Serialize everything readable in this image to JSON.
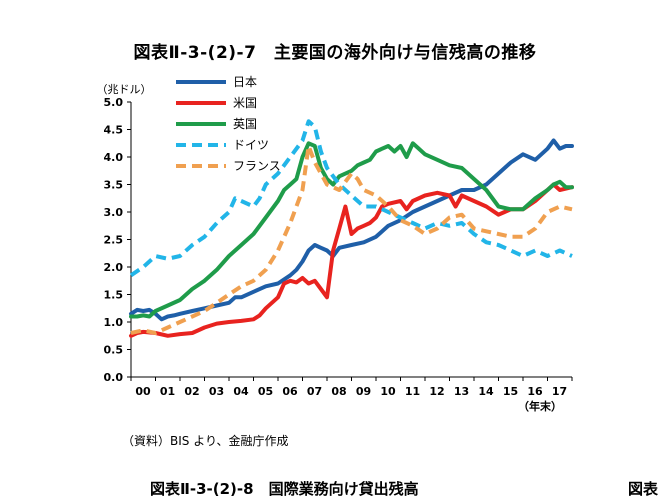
{
  "page": {
    "title": "図表Ⅱ-3-(2)-7　主要国の海外向け与信残高の推移",
    "source": "（資料）BIS より、金融庁作成",
    "next_caption": "図表Ⅱ-3-(2)-8　国際業務向け貸出残高",
    "next_caption_right": "図表"
  },
  "chart_data": {
    "type": "line",
    "title": "図表Ⅱ-3-(2)-7　主要国の海外向け与信残高の推移",
    "ylabel": "（兆ドル）",
    "xlabel": "（年末）",
    "ylim": [
      0,
      5
    ],
    "xlim": [
      2000,
      2018
    ],
    "grid": false,
    "legend_position": "top-left",
    "y_ticks": [
      "0.0",
      "0.5",
      "1.0",
      "1.5",
      "2.0",
      "2.5",
      "3.0",
      "3.5",
      "4.0",
      "4.5",
      "5.0"
    ],
    "x_ticks": [
      "00",
      "01",
      "02",
      "03",
      "04",
      "05",
      "06",
      "07",
      "08",
      "09",
      "10",
      "11",
      "12",
      "13",
      "14",
      "15",
      "16",
      "17"
    ],
    "series": [
      {
        "name": "日本",
        "color": "#1f5fa8",
        "dash": "solid",
        "x": [
          2000.0,
          2000.25,
          2000.5,
          2000.75,
          2001.0,
          2001.25,
          2001.5,
          2001.75,
          2002.0,
          2002.5,
          2003.0,
          2003.5,
          2004.0,
          2004.25,
          2004.5,
          2005.0,
          2005.5,
          2006.0,
          2006.5,
          2006.75,
          2007.0,
          2007.25,
          2007.5,
          2007.75,
          2008.0,
          2008.25,
          2008.5,
          2009.0,
          2009.5,
          2010.0,
          2010.5,
          2011.0,
          2011.5,
          2012.0,
          2012.5,
          2013.0,
          2013.5,
          2014.0,
          2014.5,
          2015.0,
          2015.5,
          2016.0,
          2016.5,
          2017.0,
          2017.25,
          2017.5,
          2017.75,
          2018.0
        ],
        "y": [
          1.15,
          1.22,
          1.2,
          1.22,
          1.15,
          1.05,
          1.1,
          1.12,
          1.15,
          1.2,
          1.25,
          1.3,
          1.35,
          1.45,
          1.45,
          1.55,
          1.65,
          1.7,
          1.85,
          1.95,
          2.1,
          2.3,
          2.4,
          2.35,
          2.3,
          2.2,
          2.35,
          2.4,
          2.45,
          2.55,
          2.75,
          2.85,
          3.0,
          3.1,
          3.2,
          3.3,
          3.4,
          3.4,
          3.5,
          3.7,
          3.9,
          4.05,
          3.95,
          4.15,
          4.3,
          4.15,
          4.2,
          4.2
        ]
      },
      {
        "name": "米国",
        "color": "#e8231f",
        "dash": "solid",
        "x": [
          2000.0,
          2000.25,
          2000.5,
          2001.0,
          2001.5,
          2002.0,
          2002.5,
          2003.0,
          2003.5,
          2004.0,
          2004.5,
          2005.0,
          2005.25,
          2005.5,
          2006.0,
          2006.25,
          2006.5,
          2006.75,
          2007.0,
          2007.25,
          2007.5,
          2007.75,
          2008.0,
          2008.25,
          2008.5,
          2008.75,
          2009.0,
          2009.25,
          2009.5,
          2009.75,
          2010.0,
          2010.25,
          2010.5,
          2011.0,
          2011.25,
          2011.5,
          2012.0,
          2012.5,
          2013.0,
          2013.25,
          2013.5,
          2014.0,
          2014.5,
          2015.0,
          2015.25,
          2015.5,
          2016.0,
          2016.5,
          2017.0,
          2017.25,
          2017.5,
          2018.0
        ],
        "y": [
          0.75,
          0.8,
          0.82,
          0.8,
          0.75,
          0.78,
          0.8,
          0.9,
          0.97,
          1.0,
          1.02,
          1.05,
          1.12,
          1.25,
          1.45,
          1.7,
          1.75,
          1.72,
          1.8,
          1.7,
          1.75,
          1.6,
          1.45,
          2.3,
          2.7,
          3.1,
          2.6,
          2.7,
          2.75,
          2.8,
          2.9,
          3.1,
          3.15,
          3.2,
          3.05,
          3.2,
          3.3,
          3.35,
          3.3,
          3.1,
          3.3,
          3.2,
          3.1,
          2.95,
          3.0,
          3.05,
          3.05,
          3.2,
          3.4,
          3.5,
          3.4,
          3.45
        ]
      },
      {
        "name": "英国",
        "color": "#1f9c4a",
        "dash": "solid",
        "x": [
          2000.0,
          2000.25,
          2000.5,
          2000.75,
          2001.0,
          2001.5,
          2002.0,
          2002.5,
          2003.0,
          2003.5,
          2004.0,
          2004.5,
          2005.0,
          2005.5,
          2006.0,
          2006.25,
          2006.5,
          2006.75,
          2007.0,
          2007.25,
          2007.5,
          2007.75,
          2008.0,
          2008.25,
          2008.5,
          2009.0,
          2009.25,
          2009.5,
          2009.75,
          2010.0,
          2010.25,
          2010.5,
          2010.75,
          2011.0,
          2011.25,
          2011.5,
          2011.75,
          2012.0,
          2012.5,
          2013.0,
          2013.5,
          2014.0,
          2014.5,
          2015.0,
          2015.5,
          2016.0,
          2016.5,
          2017.0,
          2017.25,
          2017.5,
          2017.75,
          2018.0
        ],
        "y": [
          1.1,
          1.1,
          1.12,
          1.1,
          1.2,
          1.3,
          1.4,
          1.6,
          1.75,
          1.95,
          2.2,
          2.4,
          2.6,
          2.9,
          3.2,
          3.4,
          3.5,
          3.6,
          4.0,
          4.25,
          4.2,
          3.8,
          3.6,
          3.5,
          3.65,
          3.75,
          3.85,
          3.9,
          3.95,
          4.1,
          4.15,
          4.2,
          4.1,
          4.2,
          4.0,
          4.25,
          4.15,
          4.05,
          3.95,
          3.85,
          3.8,
          3.6,
          3.4,
          3.1,
          3.05,
          3.05,
          3.25,
          3.4,
          3.5,
          3.55,
          3.45,
          3.45
        ]
      },
      {
        "name": "ドイツ",
        "color": "#22b5e8",
        "dash": "dashed",
        "x": [
          2000.0,
          2000.5,
          2001.0,
          2001.5,
          2002.0,
          2002.5,
          2003.0,
          2003.5,
          2004.0,
          2004.25,
          2004.5,
          2005.0,
          2005.25,
          2005.5,
          2006.0,
          2006.5,
          2007.0,
          2007.25,
          2007.5,
          2007.75,
          2008.0,
          2008.5,
          2009.0,
          2009.5,
          2010.0,
          2010.5,
          2011.0,
          2011.5,
          2012.0,
          2012.5,
          2013.0,
          2013.5,
          2014.0,
          2014.5,
          2015.0,
          2015.5,
          2016.0,
          2016.5,
          2017.0,
          2017.5,
          2018.0
        ],
        "y": [
          1.85,
          2.0,
          2.2,
          2.15,
          2.2,
          2.4,
          2.55,
          2.8,
          3.0,
          3.25,
          3.2,
          3.1,
          3.25,
          3.5,
          3.7,
          4.0,
          4.3,
          4.65,
          4.55,
          4.1,
          3.8,
          3.5,
          3.3,
          3.1,
          3.1,
          3.0,
          2.9,
          2.8,
          2.7,
          2.8,
          2.75,
          2.8,
          2.6,
          2.45,
          2.4,
          2.3,
          2.2,
          2.3,
          2.2,
          2.3,
          2.2
        ]
      },
      {
        "name": "フランス",
        "color": "#f0a050",
        "dash": "dashed",
        "x": [
          2000.0,
          2000.5,
          2001.0,
          2001.5,
          2002.0,
          2002.5,
          2003.0,
          2003.5,
          2004.0,
          2004.5,
          2005.0,
          2005.5,
          2006.0,
          2006.5,
          2007.0,
          2007.25,
          2007.5,
          2008.0,
          2008.5,
          2009.0,
          2009.25,
          2009.5,
          2010.0,
          2010.5,
          2011.0,
          2011.5,
          2012.0,
          2012.5,
          2013.0,
          2013.5,
          2014.0,
          2014.5,
          2015.0,
          2015.5,
          2016.0,
          2016.5,
          2017.0,
          2017.5,
          2018.0
        ],
        "y": [
          0.8,
          0.85,
          0.8,
          0.9,
          1.0,
          1.1,
          1.2,
          1.35,
          1.5,
          1.65,
          1.75,
          1.95,
          2.3,
          2.8,
          3.4,
          4.2,
          3.9,
          3.5,
          3.4,
          3.7,
          3.6,
          3.4,
          3.3,
          3.1,
          2.85,
          2.75,
          2.6,
          2.7,
          2.9,
          2.95,
          2.7,
          2.65,
          2.6,
          2.55,
          2.55,
          2.7,
          3.0,
          3.1,
          3.05
        ]
      }
    ]
  }
}
